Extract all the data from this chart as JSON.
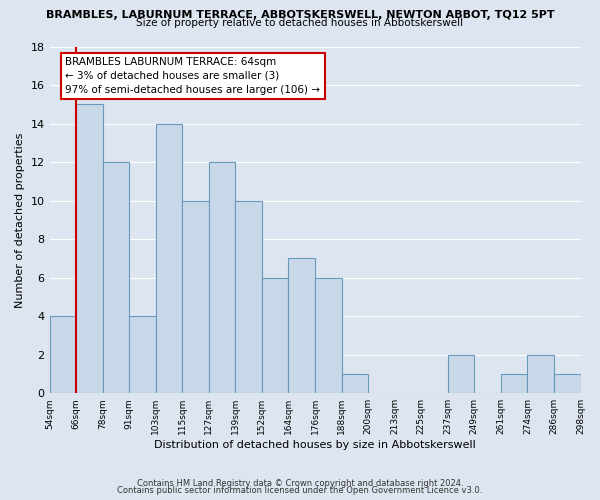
{
  "title": "BRAMBLES, LABURNUM TERRACE, ABBOTSKERSWELL, NEWTON ABBOT, TQ12 5PT",
  "subtitle": "Size of property relative to detached houses in Abbotskerswell",
  "xlabel": "Distribution of detached houses by size in Abbotskerswell",
  "ylabel": "Number of detached properties",
  "bin_labels": [
    "54sqm",
    "66sqm",
    "78sqm",
    "91sqm",
    "103sqm",
    "115sqm",
    "127sqm",
    "139sqm",
    "152sqm",
    "164sqm",
    "176sqm",
    "188sqm",
    "200sqm",
    "213sqm",
    "225sqm",
    "237sqm",
    "249sqm",
    "261sqm",
    "274sqm",
    "286sqm",
    "298sqm"
  ],
  "bin_values": [
    4,
    15,
    12,
    4,
    14,
    10,
    12,
    10,
    6,
    7,
    6,
    1,
    0,
    0,
    0,
    2,
    0,
    1,
    2,
    1
  ],
  "bar_color": "#c8d8e8",
  "bar_edge_color": "#6699bb",
  "highlight_bin_index": 1,
  "highlight_line_color": "#cc0000",
  "annotation_line0": "BRAMBLES LABURNUM TERRACE: 64sqm",
  "annotation_line1": "← 3% of detached houses are smaller (3)",
  "annotation_line2": "97% of semi-detached houses are larger (106) →",
  "annotation_box_color": "#ffffff",
  "annotation_box_edge": "#cc0000",
  "ylim": [
    0,
    18
  ],
  "yticks": [
    0,
    2,
    4,
    6,
    8,
    10,
    12,
    14,
    16,
    18
  ],
  "footer1": "Contains HM Land Registry data © Crown copyright and database right 2024.",
  "footer2": "Contains public sector information licensed under the Open Government Licence v3.0.",
  "background_color": "#dde6f0",
  "grid_color": "#ffffff"
}
